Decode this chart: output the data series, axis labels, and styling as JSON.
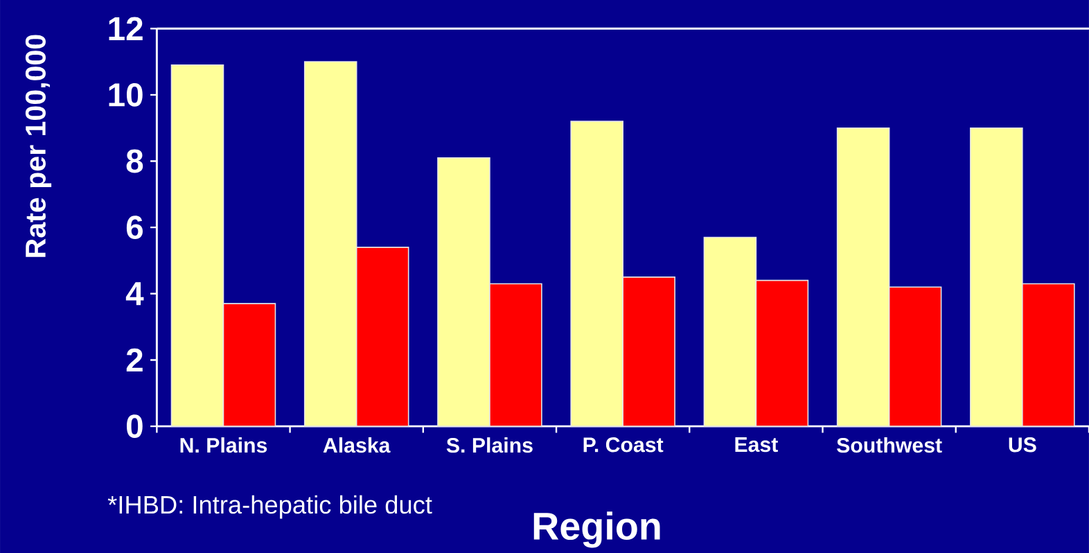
{
  "chart_data": {
    "type": "bar",
    "xlabel": "Region",
    "ylabel": "Rate per 100,000",
    "annotations": [
      "*IHBD: Intra-hepatic bile duct"
    ],
    "categories": [
      "N. Plains",
      "Alaska",
      "S. Plains",
      "P. Coast",
      "East",
      "Southwest",
      "US"
    ],
    "series": [
      {
        "color": "#ffff99",
        "values": [
          10.9,
          11.0,
          8.1,
          9.2,
          5.7,
          9.0,
          9.0
        ]
      },
      {
        "color": "#ff0000",
        "values": [
          3.7,
          5.4,
          4.3,
          4.5,
          4.4,
          4.2,
          4.3
        ]
      }
    ],
    "ylim": [
      0,
      12
    ],
    "yticks": [
      0,
      2,
      4,
      6,
      8,
      10,
      12
    ]
  }
}
